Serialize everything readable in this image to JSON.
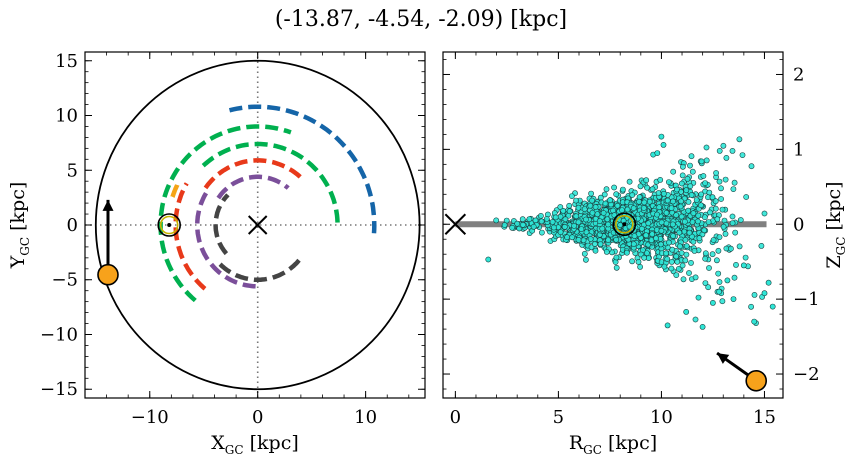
{
  "figure": {
    "title": "(-13.87, -4.54, -2.09) [kpc]"
  },
  "colors": {
    "circle": "#000000",
    "crosshair": "#777777",
    "arm_blue": "#1565a8",
    "arm_green": "#00b04f",
    "arm_orange": "#f5a416",
    "arm_red": "#e8391a",
    "arm_purple": "#7b4f9a",
    "arm_dark": "#444444",
    "sun_marker": "#c8b400",
    "target_fill": "#f7a21b",
    "scatter_fill": "#2ee6d6",
    "scatter_edge": "#1a4040",
    "plane_band": "#808080"
  },
  "chart_data": [
    {
      "type": "scatter",
      "panel": "left",
      "xlabel": "X",
      "xlabel_sub": "GC",
      "xlabel_unit": " [kpc]",
      "ylabel": "Y",
      "ylabel_sub": "GC",
      "ylabel_unit": " [kpc]",
      "xlim": [
        -16.0,
        15.5
      ],
      "ylim": [
        -15.8,
        15.8
      ],
      "xticks": [
        -10,
        0,
        10
      ],
      "xtick_labels": [
        "−10",
        "0",
        "10"
      ],
      "yticks": [
        -15,
        -10,
        -5,
        0,
        5,
        10,
        15
      ],
      "ytick_labels": [
        "−15",
        "−10",
        "−5",
        "0",
        "5",
        "10",
        "15"
      ],
      "galaxy_circle_radius": 15,
      "galactic_center": {
        "x": 0,
        "y": 0
      },
      "sun": {
        "x": -8.2,
        "y": 0
      },
      "target": {
        "x": -13.87,
        "y": -4.54
      },
      "target_arrow_tip": {
        "x": -13.87,
        "y": 2.3
      },
      "arms": [
        {
          "color_key": "arm_blue",
          "arc": {
            "cx": 0,
            "cy": 0,
            "r": 10.8,
            "a0": 104,
            "a1": -4
          }
        },
        {
          "color_key": "arm_green",
          "arc": {
            "cx": 0,
            "cy": 0,
            "r": 9.0,
            "a0": 230,
            "a1": 70
          }
        },
        {
          "color_key": "arm_green",
          "arc": {
            "cx": 0,
            "cy": 0,
            "r": 7.4,
            "a0": 133,
            "a1": -2
          }
        },
        {
          "color_key": "arm_orange",
          "arc": {
            "cx": 0,
            "cy": 0,
            "r": 8.3,
            "a0": 162,
            "a1": 152
          }
        },
        {
          "color_key": "arm_red",
          "arc": {
            "cx": 0,
            "cy": 0,
            "r": 7.6,
            "a0": 230,
            "a1": 150
          }
        },
        {
          "color_key": "arm_red",
          "arc": {
            "cx": 0,
            "cy": 0,
            "r": 5.9,
            "a0": 145,
            "a1": 45
          }
        },
        {
          "color_key": "arm_purple",
          "arc": {
            "cx": 0,
            "cy": 0,
            "r": 5.6,
            "a0": 268,
            "a1": 148
          }
        },
        {
          "color_key": "arm_purple",
          "arc": {
            "cx": 0,
            "cy": 0,
            "r": 4.4,
            "a0": 146,
            "a1": 50
          }
        },
        {
          "color_key": "arm_dark",
          "arc": {
            "cx": 0,
            "cy": 0,
            "r": 5.0,
            "a0": -40,
            "a1": -140
          }
        },
        {
          "color_key": "arm_dark",
          "arc": {
            "cx": 0,
            "cy": 0,
            "r": 3.9,
            "a0": 222,
            "a1": 135
          }
        }
      ]
    },
    {
      "type": "scatter",
      "panel": "right",
      "xlabel": "R",
      "xlabel_sub": "GC",
      "xlabel_unit": " [kpc]",
      "ylabel": "Z",
      "ylabel_sub": "GC",
      "ylabel_unit": " [kpc]",
      "xlim": [
        -0.6,
        15.9
      ],
      "ylim": [
        -2.32,
        2.3
      ],
      "xticks": [
        0,
        5,
        10,
        15
      ],
      "xtick_labels": [
        "0",
        "5",
        "10",
        "15"
      ],
      "yticks": [
        -2,
        -1,
        0,
        1,
        2
      ],
      "ytick_labels": [
        "−2",
        "−1",
        "0",
        "1",
        "2"
      ],
      "plane_band": {
        "x0": 0,
        "x1": 15.1,
        "z": 0
      },
      "galactic_center": {
        "r": 0,
        "z": 0
      },
      "sun": {
        "r": 8.2,
        "z": 0
      },
      "target": {
        "r": 14.6,
        "z": -2.09
      },
      "target_arrow_tip": {
        "r": 12.7,
        "z": -1.72
      },
      "stars": {
        "count": 1700,
        "r_range": [
          1.5,
          15.1
        ],
        "note": "disk star sample"
      }
    }
  ]
}
